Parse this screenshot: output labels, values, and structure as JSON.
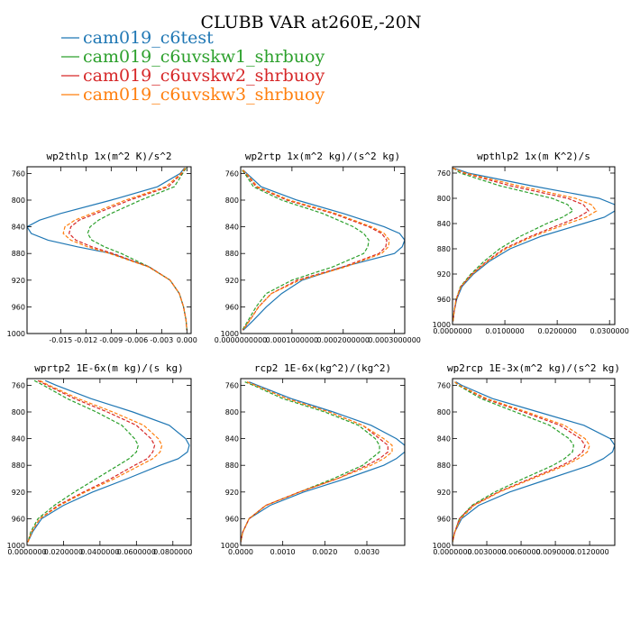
{
  "title": "CLUBB VAR at260E,-20N",
  "legend": [
    {
      "name": "cam019_c6test",
      "color": "#1f77b4",
      "dash": "solid"
    },
    {
      "name": "cam019_c6uvskw1_shrbuoy",
      "color": "#2ca02c",
      "dash": "dash"
    },
    {
      "name": "cam019_c6uvskw2_shrbuoy",
      "color": "#d62728",
      "dash": "dash"
    },
    {
      "name": "cam019_c6uvskw3_shrbuoy",
      "color": "#ff7f0e",
      "dash": "dash"
    }
  ],
  "chart_data": [
    {
      "type": "line",
      "title": "wp2thlp  1x(m^2 K)/s^2",
      "xlim": [
        -0.019,
        0.0005
      ],
      "ylim": [
        1000,
        750
      ],
      "xticks": [
        -0.015,
        -0.012,
        -0.009,
        -0.006,
        -0.003,
        0.0
      ],
      "xticklabels": [
        "-0.015",
        "-0.012",
        "-0.009",
        "-0.006",
        "-0.003",
        "0.000"
      ],
      "yticks": [
        760,
        800,
        840,
        880,
        920,
        960,
        1000
      ],
      "y": [
        752,
        760,
        780,
        800,
        820,
        830,
        840,
        850,
        860,
        870,
        880,
        900,
        920,
        940,
        960,
        980,
        995
      ],
      "series": [
        {
          "name": "cam019_c6test",
          "x": [
            -0.0003,
            -0.0008,
            -0.0035,
            -0.009,
            -0.015,
            -0.0175,
            -0.019,
            -0.0185,
            -0.0165,
            -0.013,
            -0.009,
            -0.0045,
            -0.002,
            -0.0009,
            -0.0004,
            -0.0001,
            0.0
          ]
        },
        {
          "name": "cam019_c6uvskw1_shrbuoy",
          "x": [
            -0.0001,
            -0.0005,
            -0.0015,
            -0.0055,
            -0.009,
            -0.0105,
            -0.0115,
            -0.0118,
            -0.0113,
            -0.0098,
            -0.0078,
            -0.0045,
            -0.002,
            -0.0009,
            -0.0004,
            -0.0001,
            0.0
          ]
        },
        {
          "name": "cam019_c6uvskw2_shrbuoy",
          "x": [
            -0.0002,
            -0.0006,
            -0.0022,
            -0.0068,
            -0.0108,
            -0.0128,
            -0.0138,
            -0.014,
            -0.0132,
            -0.0113,
            -0.0088,
            -0.0045,
            -0.002,
            -0.0009,
            -0.0004,
            -0.0001,
            0.0
          ]
        },
        {
          "name": "cam019_c6uvskw3_shrbuoy",
          "x": [
            -0.0002,
            -0.0007,
            -0.0025,
            -0.0073,
            -0.0113,
            -0.0133,
            -0.0145,
            -0.0147,
            -0.0138,
            -0.0118,
            -0.0092,
            -0.0046,
            -0.002,
            -0.0009,
            -0.0004,
            -0.0001,
            0.0
          ]
        }
      ]
    },
    {
      "type": "line",
      "title": "wp2rtp  1x(m^2 kg)/(s^2 kg)",
      "xlim": [
        0,
        0.00032
      ],
      "ylim": [
        1000,
        750
      ],
      "xticks": [
        0,
        0.0001,
        0.0002,
        0.0003
      ],
      "xticklabels": [
        "0.0000000000",
        "0.0001000000",
        "0.0002000000",
        "0.0003000000"
      ],
      "yticks": [
        760,
        800,
        840,
        880,
        920,
        960,
        1000
      ],
      "y": [
        755,
        760,
        780,
        800,
        820,
        840,
        850,
        860,
        870,
        880,
        890,
        900,
        920,
        940,
        960,
        980,
        995
      ],
      "series": [
        {
          "name": "cam019_c6test",
          "x": [
            5e-06,
            1.2e-05,
            4e-05,
            0.00011,
            0.0002,
            0.00028,
            0.00031,
            0.00032,
            0.000315,
            0.0003,
            0.00025,
            0.0002,
            0.00012,
            8e-05,
            5e-05,
            2.5e-05,
            5e-06
          ]
        },
        {
          "name": "cam019_c6uvskw1_shrbuoy",
          "x": [
            3e-06,
            8e-06,
            2.5e-05,
            8e-05,
            0.00016,
            0.00022,
            0.00024,
            0.00025,
            0.000248,
            0.00024,
            0.00021,
            0.00018,
            0.0001,
            5e-05,
            3e-05,
            1.5e-05,
            3e-06
          ]
        },
        {
          "name": "cam019_c6uvskw2_shrbuoy",
          "x": [
            4e-06,
            1e-05,
            3e-05,
            9e-05,
            0.00018,
            0.00025,
            0.000275,
            0.000285,
            0.000283,
            0.00027,
            0.000235,
            0.0002,
            0.00011,
            6e-05,
            3.5e-05,
            1.8e-05,
            4e-06
          ]
        },
        {
          "name": "cam019_c6uvskw3_shrbuoy",
          "x": [
            4e-06,
            1.1e-05,
            3.3e-05,
            9.5e-05,
            0.000185,
            0.000255,
            0.00028,
            0.00029,
            0.000288,
            0.000275,
            0.00024,
            0.000205,
            0.000115,
            6e-05,
            3.5e-05,
            1.8e-05,
            4e-06
          ]
        }
      ]
    },
    {
      "type": "line",
      "title": "wpthlp2  1x(m K^2)/s",
      "xlim": [
        0,
        0.031
      ],
      "ylim": [
        1000,
        750
      ],
      "xticks": [
        0,
        0.01,
        0.02,
        0.03
      ],
      "xticklabels": [
        "0.0000000",
        "0.0100000",
        "0.0200000",
        "0.0300000"
      ],
      "yticks": [
        760,
        800,
        840,
        880,
        920,
        960,
        1000
      ],
      "y": [
        752,
        760,
        780,
        800,
        810,
        820,
        830,
        840,
        860,
        880,
        900,
        920,
        940,
        960,
        980,
        995
      ],
      "series": [
        {
          "name": "cam019_c6test",
          "x": [
            0.0002,
            0.003,
            0.015,
            0.028,
            0.031,
            0.031,
            0.029,
            0.025,
            0.017,
            0.011,
            0.007,
            0.004,
            0.0018,
            0.0008,
            0.0003,
            0.0001
          ]
        },
        {
          "name": "cam019_c6uvskw1_shrbuoy",
          "x": [
            0.0001,
            0.0015,
            0.009,
            0.019,
            0.022,
            0.023,
            0.021,
            0.018,
            0.013,
            0.009,
            0.006,
            0.0035,
            0.0015,
            0.0007,
            0.0003,
            0.0001
          ]
        },
        {
          "name": "cam019_c6uvskw2_shrbuoy",
          "x": [
            0.0001,
            0.0022,
            0.011,
            0.022,
            0.025,
            0.026,
            0.024,
            0.021,
            0.015,
            0.0098,
            0.0065,
            0.0037,
            0.0016,
            0.0007,
            0.0003,
            0.0001
          ]
        },
        {
          "name": "cam019_c6uvskw3_shrbuoy",
          "x": [
            0.0001,
            0.0025,
            0.0125,
            0.0235,
            0.0265,
            0.0275,
            0.0255,
            0.022,
            0.0155,
            0.0102,
            0.0067,
            0.0038,
            0.0016,
            0.0007,
            0.0003,
            0.0001
          ]
        }
      ]
    },
    {
      "type": "line",
      "title": "wprtp2  1E-6x(m kg)/(s kg)",
      "xlim": [
        0,
        0.09
      ],
      "ylim": [
        1000,
        750
      ],
      "xticks": [
        0,
        0.02,
        0.04,
        0.06,
        0.08
      ],
      "xticklabels": [
        "0.0000000",
        "0.0200000",
        "0.0400000",
        "0.0600000",
        "0.0800000"
      ],
      "yticks": [
        760,
        800,
        840,
        880,
        920,
        960,
        1000
      ],
      "y": [
        753,
        760,
        780,
        800,
        820,
        840,
        850,
        860,
        870,
        880,
        900,
        920,
        940,
        960,
        980,
        995
      ],
      "series": [
        {
          "name": "cam019_c6test",
          "x": [
            0.01,
            0.016,
            0.035,
            0.058,
            0.078,
            0.087,
            0.089,
            0.088,
            0.083,
            0.073,
            0.055,
            0.036,
            0.02,
            0.008,
            0.003,
            0.0005
          ]
        },
        {
          "name": "cam019_c6uvskw1_shrbuoy",
          "x": [
            0.004,
            0.009,
            0.022,
            0.038,
            0.052,
            0.059,
            0.061,
            0.06,
            0.056,
            0.05,
            0.038,
            0.026,
            0.015,
            0.006,
            0.002,
            0.0005
          ]
        },
        {
          "name": "cam019_c6uvskw2_shrbuoy",
          "x": [
            0.006,
            0.011,
            0.026,
            0.044,
            0.06,
            0.068,
            0.07,
            0.069,
            0.066,
            0.059,
            0.046,
            0.031,
            0.017,
            0.007,
            0.0025,
            0.0005
          ]
        },
        {
          "name": "cam019_c6uvskw3_shrbuoy",
          "x": [
            0.007,
            0.012,
            0.028,
            0.047,
            0.064,
            0.072,
            0.074,
            0.073,
            0.069,
            0.062,
            0.048,
            0.032,
            0.018,
            0.007,
            0.0025,
            0.0005
          ]
        }
      ]
    },
    {
      "type": "line",
      "title": "rcp2  1E-6x(kg^2)/(kg^2)",
      "xlim": [
        0,
        0.0039
      ],
      "ylim": [
        1000,
        750
      ],
      "xticks": [
        0,
        0.001,
        0.002,
        0.003
      ],
      "xticklabels": [
        "0.0000",
        "0.0010",
        "0.0020",
        "0.0030"
      ],
      "yticks": [
        760,
        800,
        840,
        880,
        920,
        960,
        1000
      ],
      "y": [
        755,
        760,
        780,
        800,
        820,
        840,
        850,
        860,
        870,
        880,
        900,
        920,
        940,
        960,
        980,
        995
      ],
      "series": [
        {
          "name": "cam019_c6test",
          "x": [
            0.0002,
            0.0004,
            0.0012,
            0.0022,
            0.0031,
            0.0037,
            0.0039,
            0.0039,
            0.0037,
            0.0034,
            0.0025,
            0.0015,
            0.0007,
            0.0002,
            5e-05,
            0.0
          ]
        },
        {
          "name": "cam019_c6uvskw1_shrbuoy",
          "x": [
            0.0001,
            0.0003,
            0.001,
            0.002,
            0.0028,
            0.0032,
            0.0033,
            0.0033,
            0.0031,
            0.0029,
            0.0022,
            0.0014,
            0.0006,
            0.0002,
            5e-05,
            0.0
          ]
        },
        {
          "name": "cam019_c6uvskw2_shrbuoy",
          "x": [
            0.00015,
            0.00035,
            0.0011,
            0.0021,
            0.0029,
            0.0033,
            0.0035,
            0.0035,
            0.0033,
            0.003,
            0.0023,
            0.0014,
            0.0006,
            0.0002,
            5e-05,
            0.0
          ]
        },
        {
          "name": "cam019_c6uvskw3_shrbuoy",
          "x": [
            0.00015,
            0.00035,
            0.0011,
            0.0021,
            0.0029,
            0.0034,
            0.0036,
            0.0036,
            0.0034,
            0.0031,
            0.0023,
            0.0014,
            0.0006,
            0.0002,
            5e-05,
            0.0
          ]
        }
      ]
    },
    {
      "type": "line",
      "title": "wp2rcp  1E-3x(m^2 kg)/(s^2 kg)",
      "xlim": [
        0,
        0.0142
      ],
      "ylim": [
        1000,
        750
      ],
      "xticks": [
        0,
        0.003,
        0.006,
        0.009,
        0.012
      ],
      "xticklabels": [
        "0.0000000",
        "0.0030000",
        "0.0060000",
        "0.0090000",
        "0.0120000"
      ],
      "yticks": [
        760,
        800,
        840,
        880,
        920,
        960,
        1000
      ],
      "y": [
        755,
        760,
        780,
        800,
        820,
        840,
        850,
        860,
        870,
        880,
        900,
        920,
        940,
        960,
        980,
        995
      ],
      "series": [
        {
          "name": "cam019_c6test",
          "x": [
            0.0003,
            0.0008,
            0.0035,
            0.0075,
            0.0115,
            0.0138,
            0.0142,
            0.014,
            0.0132,
            0.012,
            0.0085,
            0.005,
            0.0023,
            0.0008,
            0.0002,
            0.0
          ]
        },
        {
          "name": "cam019_c6uvskw1_shrbuoy",
          "x": [
            0.0002,
            0.0005,
            0.0025,
            0.0055,
            0.0085,
            0.0102,
            0.0106,
            0.0105,
            0.0098,
            0.0088,
            0.0062,
            0.0037,
            0.0017,
            0.0006,
            0.0002,
            0.0
          ]
        },
        {
          "name": "cam019_c6uvskw2_shrbuoy",
          "x": [
            0.0002,
            0.0006,
            0.0028,
            0.0062,
            0.0094,
            0.0112,
            0.0116,
            0.0114,
            0.0107,
            0.0096,
            0.0068,
            0.004,
            0.0018,
            0.0006,
            0.0002,
            0.0
          ]
        },
        {
          "name": "cam019_c6uvskw3_shrbuoy",
          "x": [
            0.0002,
            0.0006,
            0.003,
            0.0065,
            0.0098,
            0.0116,
            0.012,
            0.0118,
            0.011,
            0.0099,
            0.007,
            0.0041,
            0.0019,
            0.0007,
            0.0002,
            0.0
          ]
        }
      ]
    }
  ]
}
